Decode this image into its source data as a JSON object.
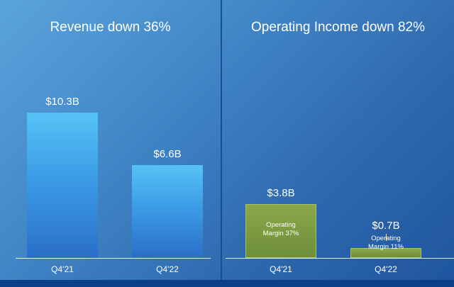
{
  "chart_data": [
    {
      "type": "bar",
      "title": "Revenue down 36%",
      "categories": [
        "Q4'21",
        "Q4'22"
      ],
      "values": [
        10.3,
        6.6
      ],
      "value_labels": [
        "$10.3B",
        "$6.6B"
      ],
      "ylim": [
        0,
        10.3
      ],
      "color": "#3c9ce6"
    },
    {
      "type": "bar",
      "title": "Operating Income down 82%",
      "categories": [
        "Q4'21",
        "Q4'22"
      ],
      "values": [
        3.8,
        0.7
      ],
      "value_labels": [
        "$3.8B",
        "$0.7B"
      ],
      "annotations": [
        [
          "Operating",
          "Margin 37%"
        ],
        [
          "Operating",
          "Margin 11%"
        ]
      ],
      "ylim": [
        0,
        10.3
      ],
      "color": "#7a9a40"
    }
  ]
}
